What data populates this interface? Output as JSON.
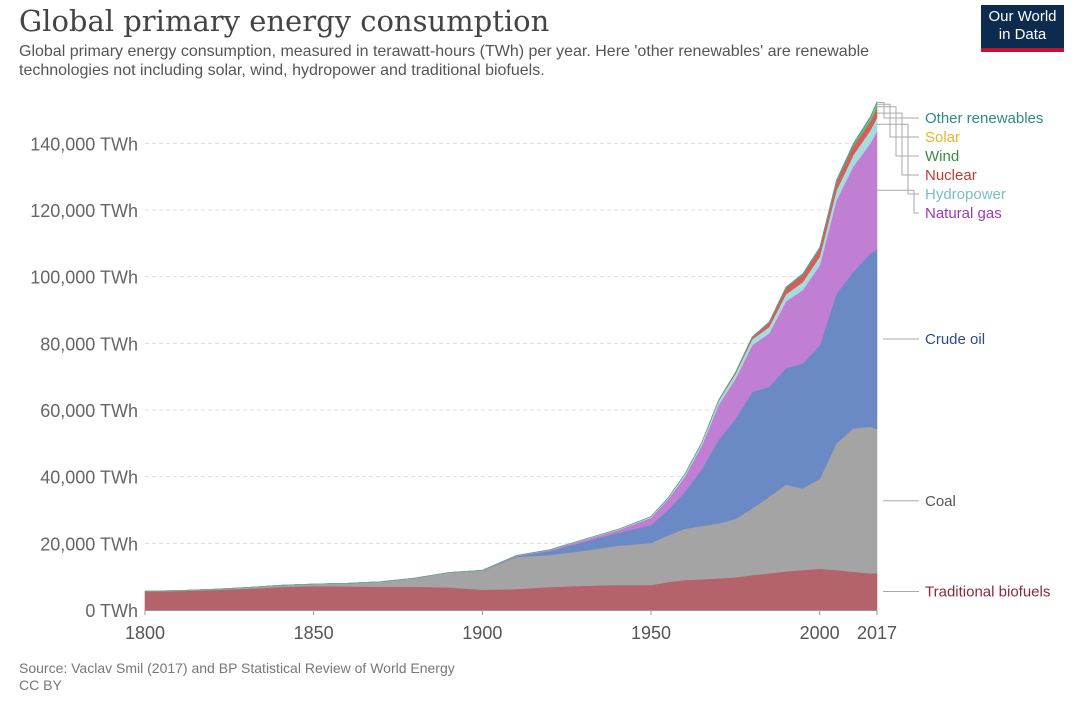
{
  "header": {
    "title": "Global primary energy consumption",
    "subtitle": "Global primary energy consumption, measured in terawatt-hours (TWh) per year. Here 'other renewables' are renewable technologies not including solar, wind, hydropower and traditional biofuels.",
    "logo_line1": "Our World",
    "logo_line2": "in Data"
  },
  "footer": {
    "source": "Source: Vaclav Smil (2017) and BP Statistical Review of World Energy",
    "license": "CC BY"
  },
  "colors": {
    "brand_navy": "#0c2b4e",
    "brand_red": "#c8102e"
  },
  "chart_data": {
    "type": "area",
    "stacked": true,
    "title": "Global primary energy consumption",
    "xlim": [
      1800,
      2017
    ],
    "ylim": [
      0,
      150000
    ],
    "x_ticks": [
      "1800",
      "1850",
      "1900",
      "1950",
      "2000",
      "2017"
    ],
    "y_ticks": [
      "0 TWh",
      "20,000 TWh",
      "40,000 TWh",
      "60,000 TWh",
      "80,000 TWh",
      "100,000 TWh",
      "120,000 TWh",
      "140,000 TWh"
    ],
    "y_tick_values": [
      0,
      20000,
      40000,
      60000,
      80000,
      100000,
      120000,
      140000
    ],
    "grid": true,
    "legend_placement": "right, inline labels",
    "x": [
      1800,
      1810,
      1820,
      1830,
      1840,
      1850,
      1860,
      1870,
      1880,
      1890,
      1900,
      1910,
      1920,
      1930,
      1940,
      1950,
      1955,
      1960,
      1965,
      1970,
      1975,
      1980,
      1985,
      1990,
      1995,
      2000,
      2005,
      2010,
      2015,
      2017
    ],
    "series": [
      {
        "name": "Traditional biofuels",
        "color": "#b5636b",
        "label_color": "#8e2a36",
        "values": [
          5556,
          5700,
          6000,
          6400,
          6900,
          7200,
          7100,
          7000,
          7000,
          6800,
          6100,
          6300,
          6900,
          7300,
          7500,
          7500,
          8400,
          9000,
          9200,
          9500,
          9800,
          10500,
          11000,
          11600,
          12000,
          12400,
          12000,
          11500,
          11000,
          11100
        ]
      },
      {
        "name": "Coal",
        "color": "#a4a4a4",
        "label_color": "#555555",
        "values": [
          97,
          150,
          220,
          350,
          500,
          570,
          900,
          1500,
          2600,
          4400,
          5700,
          9600,
          9600,
          10500,
          11800,
          12600,
          14000,
          15400,
          16000,
          16500,
          17500,
          20000,
          23000,
          26000,
          24500,
          27000,
          38000,
          43000,
          44000,
          43300
        ]
      },
      {
        "name": "Crude oil",
        "color": "#6b8ac5",
        "label_color": "#2e4b86",
        "values": [
          0,
          0,
          0,
          0,
          0,
          0,
          0,
          0,
          0,
          0,
          0,
          200,
          1200,
          2600,
          3800,
          5400,
          7600,
          11000,
          17000,
          25000,
          30000,
          35000,
          33000,
          35000,
          37500,
          40000,
          45000,
          47000,
          52000,
          53800
        ]
      },
      {
        "name": "Natural gas",
        "color": "#c17fd3",
        "label_color": "#9b3ab8",
        "values": [
          0,
          0,
          0,
          0,
          0,
          0,
          0,
          0,
          10,
          50,
          100,
          200,
          300,
          600,
          800,
          2200,
          3200,
          4600,
          7000,
          10500,
          12000,
          14000,
          16000,
          20000,
          22000,
          24000,
          28000,
          31600,
          33000,
          35500
        ]
      },
      {
        "name": "Hydropower",
        "color": "#a6dbe0",
        "label_color": "#79bdca",
        "values": [
          0,
          0,
          0,
          0,
          0,
          0,
          0,
          0,
          0,
          0,
          0,
          30,
          90,
          150,
          220,
          330,
          400,
          700,
          900,
          1200,
          1500,
          1700,
          1900,
          2100,
          2400,
          2600,
          2900,
          3400,
          3900,
          4060
        ]
      },
      {
        "name": "Nuclear",
        "color": "#d55f58",
        "label_color": "#c43a32",
        "values": [
          0,
          0,
          0,
          0,
          0,
          0,
          0,
          0,
          0,
          0,
          0,
          0,
          0,
          0,
          0,
          0,
          0,
          0,
          50,
          200,
          400,
          700,
          1400,
          2000,
          2300,
          2500,
          2700,
          2700,
          2500,
          2640
        ]
      },
      {
        "name": "Wind",
        "color": "#68ad6d",
        "label_color": "#3b8b44",
        "values": [
          0,
          0,
          0,
          0,
          0,
          0,
          0,
          0,
          0,
          0,
          0,
          0,
          0,
          0,
          0,
          0,
          0,
          0,
          0,
          0,
          0,
          0,
          0,
          5,
          15,
          30,
          100,
          350,
          850,
          1120
        ]
      },
      {
        "name": "Solar",
        "color": "#f4cf4e",
        "label_color": "#e9b528",
        "values": [
          0,
          0,
          0,
          0,
          0,
          0,
          0,
          0,
          0,
          0,
          0,
          0,
          0,
          0,
          0,
          0,
          0,
          0,
          0,
          0,
          0,
          0,
          0,
          0,
          0,
          2,
          5,
          30,
          250,
          440
        ]
      },
      {
        "name": "Other renewables",
        "color": "#3aa3a3",
        "label_color": "#2e8a8a",
        "values": [
          0,
          0,
          0,
          0,
          0,
          0,
          0,
          0,
          0,
          0,
          0,
          0,
          0,
          0,
          0,
          0,
          0,
          0,
          0,
          0,
          20,
          50,
          100,
          150,
          200,
          250,
          300,
          400,
          500,
          560
        ]
      }
    ]
  }
}
